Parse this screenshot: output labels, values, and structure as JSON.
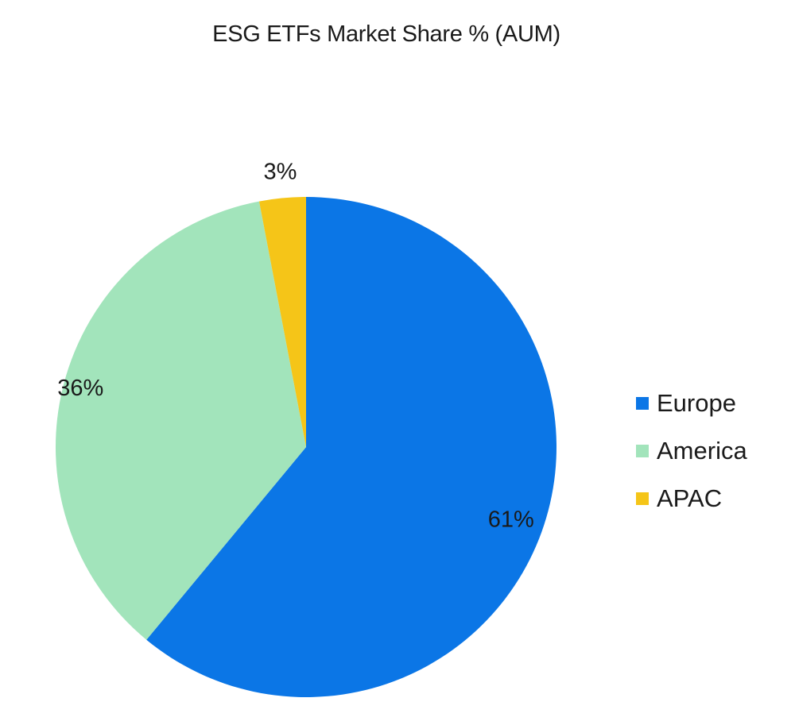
{
  "chart_data": {
    "type": "pie",
    "title": "ESG ETFs Market Share % (AUM)",
    "slices": [
      {
        "name": "Europe",
        "value": 61,
        "label": "61%",
        "color": "#0b76e6"
      },
      {
        "name": "America",
        "value": 36,
        "label": "36%",
        "color": "#a2e4bb"
      },
      {
        "name": "APAC",
        "value": 3,
        "label": "3%",
        "color": "#f5c518"
      }
    ],
    "start_angle_deg": 0,
    "direction": "clockwise",
    "legend_position": "right"
  }
}
